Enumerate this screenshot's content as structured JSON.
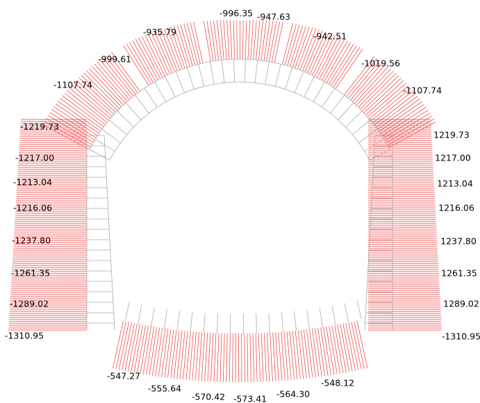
{
  "diagram": {
    "top_labels": [
      "-935.79",
      "-996.35",
      "-947.63",
      "-942.51",
      "-999.61",
      "-1019.56",
      "-1107.74",
      "-1107.74"
    ],
    "left_labels": [
      "-1219.73",
      "-1217.00",
      "-1213.04",
      "-1216.06",
      "-1237.80",
      "-1261.35",
      "-1289.02",
      "-1310.95"
    ],
    "right_labels": [
      "1219.73",
      "1217.00",
      "1213.04",
      "1216.06",
      "1237.80",
      "1261.35",
      "1289.02",
      "-1310.95"
    ],
    "bottom_labels": [
      "-547.27",
      "-555.64",
      "-570.42",
      "-573.41",
      "-564.30",
      "-548.12"
    ]
  }
}
